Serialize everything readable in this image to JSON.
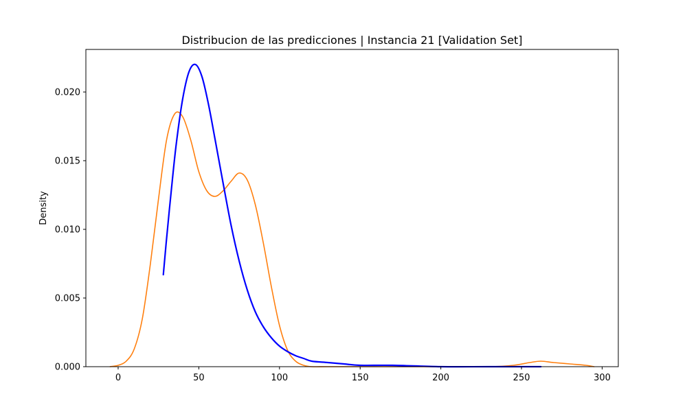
{
  "chart_data": {
    "type": "line",
    "title": "Distribucion de las predicciones | Instancia 21 [Validation Set]",
    "xlabel": "",
    "ylabel": "Density",
    "xlim": [
      -20,
      310
    ],
    "ylim": [
      0,
      0.0231
    ],
    "xticks": [
      0,
      50,
      100,
      150,
      200,
      250,
      300
    ],
    "xtick_labels": [
      "0",
      "50",
      "100",
      "150",
      "200",
      "250",
      "300"
    ],
    "yticks": [
      0,
      0.005,
      0.01,
      0.015,
      0.02
    ],
    "ytick_labels": [
      "0.000",
      "0.005",
      "0.010",
      "0.015",
      "0.020"
    ],
    "grid": false,
    "legend": false,
    "series": [
      {
        "color": "#ff7f0e",
        "x": [
          -5,
          0,
          5,
          10,
          15,
          20,
          25,
          30,
          35,
          40,
          45,
          50,
          55,
          60,
          65,
          70,
          75,
          80,
          85,
          90,
          95,
          100,
          105,
          110,
          115,
          120,
          130,
          150,
          200,
          230,
          245,
          255,
          262,
          270,
          280,
          290,
          295
        ],
        "y": [
          0.0,
          0.0001,
          0.0004,
          0.0013,
          0.0035,
          0.0075,
          0.0122,
          0.0165,
          0.0184,
          0.0182,
          0.0165,
          0.0142,
          0.0128,
          0.0124,
          0.0128,
          0.0135,
          0.0141,
          0.0136,
          0.0118,
          0.009,
          0.0058,
          0.003,
          0.0012,
          0.0004,
          0.0001,
          0.0,
          0.0,
          0.0,
          0.0,
          0.0,
          0.0001,
          0.0003,
          0.0004,
          0.0003,
          0.0002,
          0.0001,
          0.0
        ]
      },
      {
        "color": "#0000ff",
        "x": [
          28,
          30,
          33,
          36,
          40,
          44,
          48,
          52,
          56,
          60,
          65,
          70,
          75,
          80,
          85,
          90,
          95,
          100,
          105,
          110,
          115,
          120,
          130,
          140,
          150,
          170,
          200,
          230,
          262
        ],
        "y": [
          0.0067,
          0.0093,
          0.0129,
          0.0162,
          0.0195,
          0.0215,
          0.022,
          0.0211,
          0.0191,
          0.0166,
          0.0134,
          0.0103,
          0.0077,
          0.0056,
          0.004,
          0.0029,
          0.0021,
          0.0015,
          0.0011,
          0.0008,
          0.0006,
          0.0004,
          0.0003,
          0.0002,
          0.0001,
          0.0001,
          0.0,
          0.0,
          0.0
        ]
      }
    ]
  }
}
